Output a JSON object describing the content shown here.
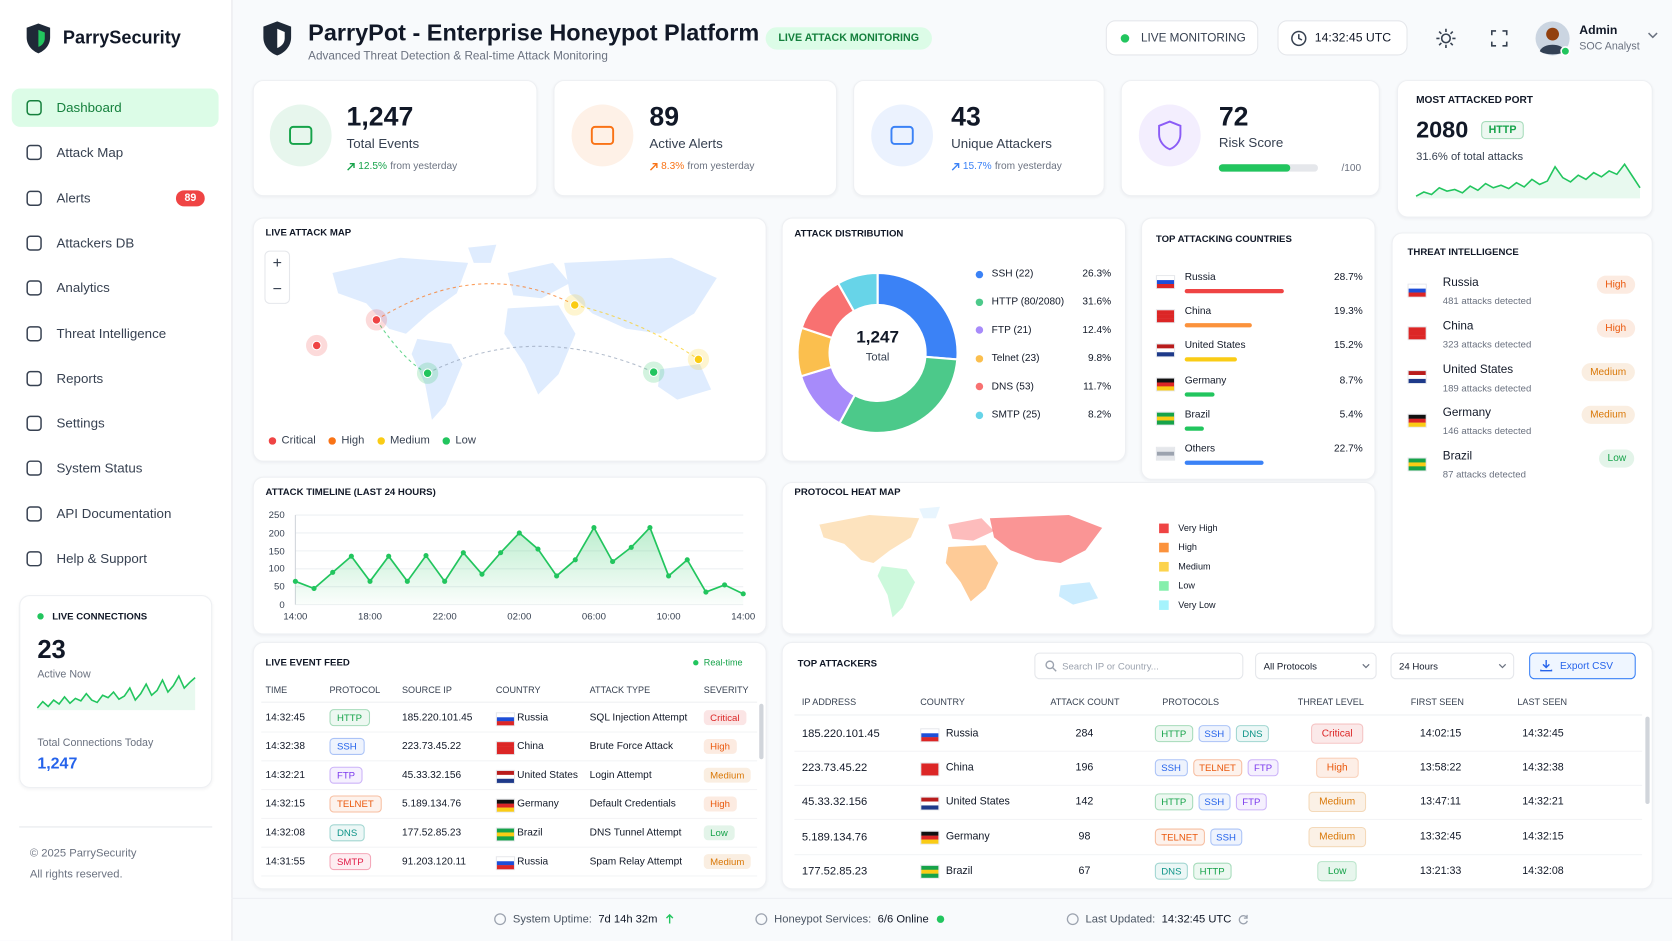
{
  "sidebar": {
    "brand": "ParrySecurity",
    "nav": [
      {
        "label": "Dashboard"
      },
      {
        "label": "Attack Map"
      },
      {
        "label": "Alerts",
        "badge": "89"
      },
      {
        "label": "Attackers DB"
      },
      {
        "label": "Analytics"
      },
      {
        "label": "Threat Intelligence"
      },
      {
        "label": "Reports"
      },
      {
        "label": "Settings"
      },
      {
        "label": "System Status"
      },
      {
        "label": "API Documentation"
      },
      {
        "label": "Help & Support"
      }
    ],
    "live": {
      "title": "LIVE CONNECTIONS",
      "value": "23",
      "caption": "Active Now",
      "spark": [
        20,
        28,
        22,
        30,
        25,
        34,
        26,
        32,
        29,
        38,
        30,
        27,
        36,
        33,
        40,
        31,
        35,
        45,
        30,
        38,
        50,
        36,
        42,
        55,
        40,
        48,
        60,
        45,
        52,
        58
      ],
      "total_label": "Total Connections Today",
      "total": "1,247"
    },
    "copyright": "© 2025 ParrySecurity",
    "rights": "All rights reserved."
  },
  "header": {
    "title": "ParryPot - Enterprise Honeypot Platform",
    "subtitle": "Advanced Threat Detection & Real-time Attack Monitoring",
    "badge": "LIVE ATTACK MONITORING",
    "live": "LIVE MONITORING",
    "time": "14:32:45 UTC",
    "user": "Admin",
    "role": "SOC Analyst"
  },
  "stats": [
    {
      "value": "1,247",
      "label": "Total Events",
      "change": "12.5%",
      "note": "from yesterday",
      "color": "#16a34a"
    },
    {
      "value": "89",
      "label": "Active Alerts",
      "change": "8.3%",
      "note": "from yesterday",
      "color": "#f97316"
    },
    {
      "value": "43",
      "label": "Unique Attackers",
      "change": "15.7%",
      "note": "from yesterday",
      "color": "#3b82f6"
    }
  ],
  "risk": {
    "value": 72,
    "label": "Risk Score",
    "max": 100,
    "max_label": "/100",
    "color": "#8b5cf6"
  },
  "port": {
    "title": "MOST ATTACKED PORT",
    "value": "2080",
    "tag": "HTTP",
    "note": "31.6% of total attacks",
    "spark": [
      20,
      25,
      22,
      30,
      26,
      28,
      24,
      32,
      27,
      35,
      30,
      33,
      29,
      36,
      31,
      40,
      34,
      38,
      55,
      42,
      37,
      45,
      40,
      48,
      43,
      50,
      46,
      58,
      44,
      30
    ]
  },
  "attack_map": {
    "title": "LIVE ATTACK MAP",
    "zoom_in": "+",
    "zoom_out": "−",
    "legend": [
      {
        "label": "Critical",
        "color": "#ef4444"
      },
      {
        "label": "High",
        "color": "#f97316"
      },
      {
        "label": "Medium",
        "color": "#facc15"
      },
      {
        "label": "Low",
        "color": "#22c55e"
      }
    ]
  },
  "distribution": {
    "type": "donut",
    "title": "ATTACK DISTRIBUTION",
    "total": "1,247",
    "total_label": "Total",
    "slices": [
      {
        "label": "SSH (22)",
        "value": 26.3,
        "value_label": "26.3%",
        "color": "#3b82f6"
      },
      {
        "label": "HTTP (80/2080)",
        "value": 31.6,
        "value_label": "31.6%",
        "color": "#4cc98a"
      },
      {
        "label": "FTP (21)",
        "value": 12.4,
        "value_label": "12.4%",
        "color": "#a78bfa"
      },
      {
        "label": "Telnet (23)",
        "value": 9.8,
        "value_label": "9.8%",
        "color": "#fbbf4e"
      },
      {
        "label": "DNS (53)",
        "value": 11.7,
        "value_label": "11.7%",
        "color": "#f87171"
      },
      {
        "label": "SMTP (25)",
        "value": 8.2,
        "value_label": "8.2%",
        "color": "#67d4e8"
      }
    ]
  },
  "countries": {
    "title": "TOP ATTACKING COUNTRIES",
    "items": [
      {
        "name": "Russia",
        "value": 28.7,
        "value_label": "28.7%",
        "color": "#ef4444"
      },
      {
        "name": "China",
        "value": 19.3,
        "value_label": "19.3%",
        "color": "#fb923c"
      },
      {
        "name": "United States",
        "value": 15.2,
        "value_label": "15.2%",
        "color": "#facc15"
      },
      {
        "name": "Germany",
        "value": 8.7,
        "value_label": "8.7%",
        "color": "#22c55e"
      },
      {
        "name": "Brazil",
        "value": 5.4,
        "value_label": "5.4%",
        "color": "#22c55e"
      },
      {
        "name": "Others",
        "value": 22.7,
        "value_label": "22.7%",
        "color": "#3b82f6"
      }
    ]
  },
  "threat_intel": {
    "title": "THREAT INTELLIGENCE",
    "items": [
      {
        "name": "Russia",
        "detail": "481 attacks detected",
        "level": "High"
      },
      {
        "name": "China",
        "detail": "323 attacks detected",
        "level": "High"
      },
      {
        "name": "United States",
        "detail": "189 attacks detected",
        "level": "Medium"
      },
      {
        "name": "Germany",
        "detail": "146 attacks detected",
        "level": "Medium"
      },
      {
        "name": "Brazil",
        "detail": "87 attacks detected",
        "level": "Low"
      }
    ]
  },
  "timeline": {
    "type": "line",
    "title": "ATTACK TIMELINE (LAST 24 HOURS)",
    "color": "#22c55e",
    "grid": true,
    "categories": [
      "14:00",
      null,
      null,
      null,
      "18:00",
      null,
      null,
      null,
      "22:00",
      null,
      null,
      null,
      "02:00",
      null,
      null,
      null,
      "06:00",
      null,
      null,
      null,
      "10:00",
      null,
      null,
      null,
      "14:00"
    ],
    "values": [
      65,
      45,
      90,
      135,
      65,
      135,
      65,
      137,
      65,
      145,
      85,
      145,
      200,
      155,
      80,
      125,
      215,
      120,
      160,
      215,
      80,
      125,
      35,
      55,
      30
    ],
    "ylim": [
      0,
      250
    ],
    "yticks": [
      0,
      50,
      100,
      150,
      200,
      250
    ]
  },
  "heatmap": {
    "title": "PROTOCOL HEAT MAP",
    "legend": [
      {
        "label": "Very High",
        "color": "#ef4444"
      },
      {
        "label": "High",
        "color": "#fb923c"
      },
      {
        "label": "Medium",
        "color": "#fcd34d"
      },
      {
        "label": "Low",
        "color": "#86efac"
      },
      {
        "label": "Very Low",
        "color": "#a5f3fc"
      }
    ]
  },
  "feed": {
    "title": "LIVE EVENT FEED",
    "realtime": "Real-time",
    "columns": [
      "TIME",
      "PROTOCOL",
      "SOURCE IP",
      "COUNTRY",
      "ATTACK TYPE",
      "SEVERITY"
    ],
    "rows": [
      {
        "time": "14:32:45",
        "protocol": "HTTP",
        "ip": "185.220.101.45",
        "country": "Russia",
        "type": "SQL Injection Attempt",
        "severity": "Critical"
      },
      {
        "time": "14:32:38",
        "protocol": "SSH",
        "ip": "223.73.45.22",
        "country": "China",
        "type": "Brute Force Attack",
        "severity": "High"
      },
      {
        "time": "14:32:21",
        "protocol": "FTP",
        "ip": "45.33.32.156",
        "country": "United States",
        "type": "Login Attempt",
        "severity": "Medium"
      },
      {
        "time": "14:32:15",
        "protocol": "TELNET",
        "ip": "5.189.134.76",
        "country": "Germany",
        "type": "Default Credentials",
        "severity": "High"
      },
      {
        "time": "14:32:08",
        "protocol": "DNS",
        "ip": "177.52.85.23",
        "country": "Brazil",
        "type": "DNS Tunnel Attempt",
        "severity": "Low"
      },
      {
        "time": "14:31:55",
        "protocol": "SMTP",
        "ip": "91.203.120.11",
        "country": "Russia",
        "type": "Spam Relay Attempt",
        "severity": "Medium"
      }
    ]
  },
  "attackers": {
    "title": "TOP ATTACKERS",
    "search": "Search IP or Country...",
    "protocol_filter": "All Protocols",
    "range_filter": "24 Hours",
    "export": "Export CSV",
    "columns": [
      "IP ADDRESS",
      "COUNTRY",
      "ATTACK COUNT",
      "PROTOCOLS",
      "THREAT LEVEL",
      "FIRST SEEN",
      "LAST SEEN"
    ],
    "rows": [
      {
        "ip": "185.220.101.45",
        "country": "Russia",
        "count": 284,
        "protocols": [
          "HTTP",
          "SSH",
          "DNS"
        ],
        "level": "Critical",
        "first": "14:02:15",
        "last": "14:32:45"
      },
      {
        "ip": "223.73.45.22",
        "country": "China",
        "count": 196,
        "protocols": [
          "SSH",
          "TELNET",
          "FTP"
        ],
        "level": "High",
        "first": "13:58:22",
        "last": "14:32:38"
      },
      {
        "ip": "45.33.32.156",
        "country": "United States",
        "count": 142,
        "protocols": [
          "HTTP",
          "SSH",
          "FTP"
        ],
        "level": "Medium",
        "first": "13:47:11",
        "last": "14:32:21"
      },
      {
        "ip": "5.189.134.76",
        "country": "Germany",
        "count": 98,
        "protocols": [
          "TELNET",
          "SSH"
        ],
        "level": "Medium",
        "first": "13:32:45",
        "last": "14:32:15"
      },
      {
        "ip": "177.52.85.23",
        "country": "Brazil",
        "count": 67,
        "protocols": [
          "DNS",
          "HTTP"
        ],
        "level": "Low",
        "first": "13:21:33",
        "last": "14:32:08"
      }
    ]
  },
  "status": {
    "uptime_label": "System Uptime:",
    "uptime": "7d 14h 32m",
    "services_label": "Honeypot Services:",
    "services": "6/6 Online",
    "updated_label": "Last Updated:",
    "updated": "14:32:45 UTC"
  },
  "flags": {
    "Russia": [
      "#ffffff",
      "#1d4ed8",
      "#dc2626"
    ],
    "China": [
      "#dc2626",
      "#dc2626",
      "#dc2626"
    ],
    "United States": [
      "#b91c1c",
      "#ffffff",
      "#1e3a8a"
    ],
    "Germany": [
      "#111111",
      "#dc2626",
      "#facc15"
    ],
    "Brazil": [
      "#16a34a",
      "#facc15",
      "#16a34a"
    ],
    "Others": [
      "#e5e7eb",
      "#9ca3af",
      "#e5e7eb"
    ]
  },
  "severity_colors": {
    "Critical": "#dc2626",
    "High": "#ea580c",
    "Medium": "#d97706",
    "Low": "#16a34a"
  },
  "protocol_colors": {
    "HTTP": "#16a34a",
    "SSH": "#2563eb",
    "FTP": "#7c3aed",
    "TELNET": "#ea580c",
    "DNS": "#0d9488",
    "SMTP": "#e11d48"
  }
}
